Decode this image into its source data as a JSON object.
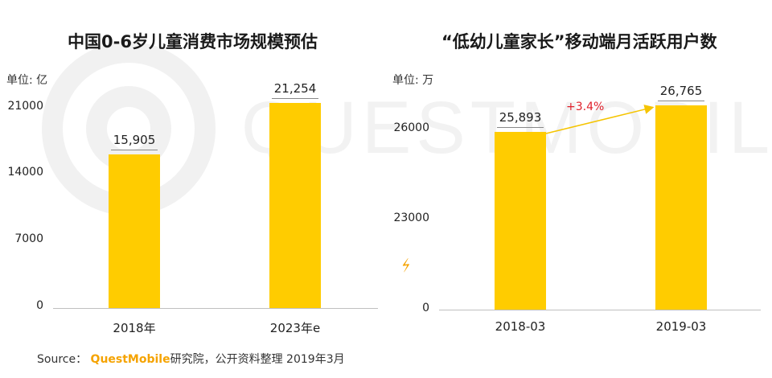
{
  "chart_data": [
    {
      "type": "bar",
      "title": "中国0-6岁儿童消费市场规模预估",
      "unit_label": "单位: 亿",
      "categories": [
        "2018年",
        "2023年e"
      ],
      "values": [
        15905,
        21254
      ],
      "value_labels": [
        "15,905",
        "21,254"
      ],
      "yticks": [
        "0",
        "7000",
        "14000",
        "21000"
      ],
      "ylim": [
        0,
        24000
      ],
      "color": "#ffcc00",
      "grid": false
    },
    {
      "type": "bar",
      "title": "“低幼儿童家长”移动端月活跃用户数",
      "unit_label": "单位: 万",
      "categories": [
        "2018-03",
        "2019-03"
      ],
      "values": [
        25893,
        26765
      ],
      "value_labels": [
        "25,893",
        "26,765"
      ],
      "yticks": [
        "0",
        "23000",
        "26000"
      ],
      "axis_break": true,
      "growth_label": "+3.4%",
      "color": "#ffcc00",
      "grid": false
    }
  ],
  "footer": {
    "prefix": "Source：",
    "brand": "QuestMobile",
    "suffix": "研究院，公开资料整理 2019年3月"
  },
  "watermark": "QUESTMOBILE",
  "icons": {
    "break": "axis-break-icon",
    "watermark": "questmobile-logo-icon"
  }
}
